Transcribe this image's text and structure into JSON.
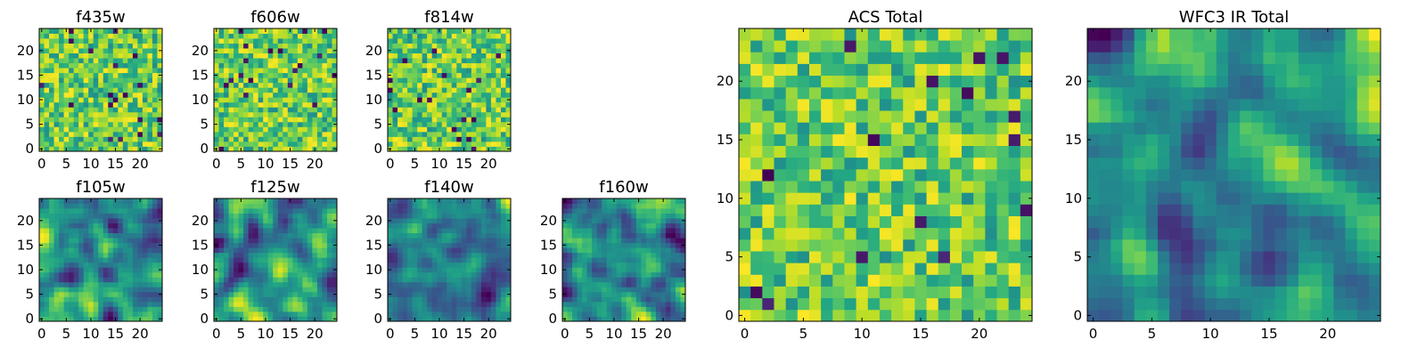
{
  "chart_data": [
    {
      "type": "heatmap",
      "title": "f435w",
      "grid_size": 25,
      "xticks": [
        "0",
        "5",
        "10",
        "15",
        "20"
      ],
      "yticks": [
        "0",
        "5",
        "10",
        "15",
        "20"
      ],
      "colormap": "viridis",
      "texture": "pixel-noise"
    },
    {
      "type": "heatmap",
      "title": "f606w",
      "grid_size": 25,
      "xticks": [
        "0",
        "5",
        "10",
        "15",
        "20"
      ],
      "yticks": [
        "0",
        "5",
        "10",
        "15",
        "20"
      ],
      "colormap": "viridis",
      "texture": "pixel-noise"
    },
    {
      "type": "heatmap",
      "title": "f814w",
      "grid_size": 25,
      "xticks": [
        "0",
        "5",
        "10",
        "15",
        "20"
      ],
      "yticks": [
        "0",
        "5",
        "10",
        "15",
        "20"
      ],
      "colormap": "viridis",
      "texture": "pixel-noise"
    },
    {
      "type": "heatmap",
      "title": "f105w",
      "grid_size": 25,
      "xticks": [
        "0",
        "5",
        "10",
        "15",
        "20"
      ],
      "yticks": [
        "0",
        "5",
        "10",
        "15",
        "20"
      ],
      "colormap": "viridis",
      "texture": "smoothed-noise"
    },
    {
      "type": "heatmap",
      "title": "f125w",
      "grid_size": 25,
      "xticks": [
        "0",
        "5",
        "10",
        "15",
        "20"
      ],
      "yticks": [
        "0",
        "5",
        "10",
        "15",
        "20"
      ],
      "colormap": "viridis",
      "texture": "smoothed-noise"
    },
    {
      "type": "heatmap",
      "title": "f140w",
      "grid_size": 25,
      "xticks": [
        "0",
        "5",
        "10",
        "15",
        "20"
      ],
      "yticks": [
        "0",
        "5",
        "10",
        "15",
        "20"
      ],
      "colormap": "viridis",
      "texture": "smoothed-noise"
    },
    {
      "type": "heatmap",
      "title": "f160w",
      "grid_size": 25,
      "xticks": [
        "0",
        "5",
        "10",
        "15",
        "20"
      ],
      "yticks": [
        "0",
        "5",
        "10",
        "15",
        "20"
      ],
      "colormap": "viridis",
      "texture": "smoothed-noise"
    },
    {
      "type": "heatmap",
      "title": "ACS Total",
      "grid_size": 25,
      "xticks": [
        "0",
        "5",
        "10",
        "15",
        "20"
      ],
      "yticks": [
        "0",
        "5",
        "10",
        "15",
        "20"
      ],
      "colormap": "viridis",
      "texture": "pixel-noise"
    },
    {
      "type": "heatmap",
      "title": "WFC3 IR Total",
      "grid_size": 25,
      "xticks": [
        "0",
        "5",
        "10",
        "15",
        "20"
      ],
      "yticks": [
        "0",
        "5",
        "10",
        "15",
        "20"
      ],
      "colormap": "viridis",
      "texture": "smoothed-noise"
    }
  ]
}
